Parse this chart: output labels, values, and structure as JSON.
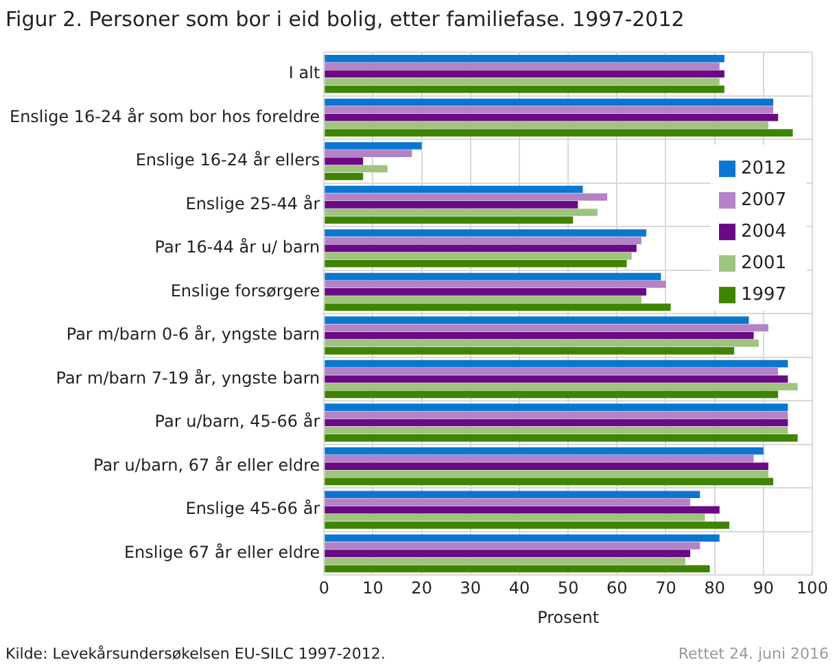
{
  "chart_data": {
    "type": "bar",
    "orientation": "horizontal",
    "title": "Figur 2. Personer som bor i eid bolig, etter familiefase. 1997-2012",
    "xlabel": "Prosent",
    "categories": [
      "I alt",
      "Enslige 16-24 år som bor hos foreldre",
      "Enslige 16-24 år ellers",
      "Enslige 25-44 år",
      "Par 16-44 år u/ barn",
      "Enslige forsørgere",
      "Par m/barn 0-6 år, yngste barn",
      "Par m/barn 7-19 år, yngste barn",
      "Par u/barn, 45-66 år",
      "Par u/barn, 67 år eller eldre",
      "Enslige 45-66 år",
      "Enslige 67 år eller eldre"
    ],
    "series": [
      {
        "name": "2012",
        "color": "#0a76d0",
        "values": [
          82,
          92,
          20,
          53,
          66,
          69,
          87,
          95,
          95,
          90,
          77,
          81
        ]
      },
      {
        "name": "2007",
        "color": "#b482c6",
        "values": [
          81,
          92,
          18,
          58,
          65,
          70,
          91,
          93,
          95,
          88,
          75,
          77
        ]
      },
      {
        "name": "2004",
        "color": "#6a0a84",
        "values": [
          82,
          93,
          8,
          52,
          64,
          66,
          88,
          95,
          95,
          91,
          81,
          75
        ]
      },
      {
        "name": "2001",
        "color": "#9ec47e",
        "values": [
          81,
          91,
          13,
          56,
          63,
          65,
          89,
          97,
          95,
          91,
          78,
          74
        ]
      },
      {
        "name": "1997",
        "color": "#3f8400",
        "values": [
          82,
          96,
          8,
          51,
          62,
          71,
          84,
          93,
          97,
          92,
          83,
          79
        ]
      }
    ],
    "xlim": [
      0,
      100
    ],
    "xticks": [
      0,
      10,
      20,
      30,
      40,
      50,
      60,
      70,
      80,
      90,
      100
    ],
    "grid": true,
    "legend": "right",
    "annotations": [
      "Kilde: Levekårsundersøkelsen EU-SILC 1997-2012.",
      "Rettet 24. juni 2016"
    ]
  }
}
